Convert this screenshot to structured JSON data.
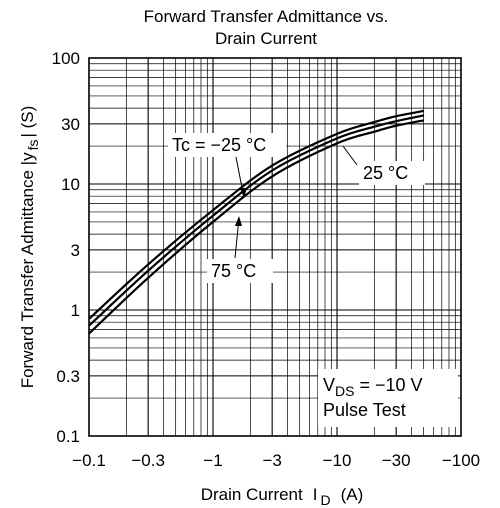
{
  "chart_data": {
    "type": "line",
    "title_line1": "Forward Transfer Admittance vs.",
    "title_line2": "Drain Current",
    "xlabel": "Drain Current",
    "xlabel_symbol": "I",
    "xlabel_sub": "D",
    "xlabel_unit": "(A)",
    "ylabel": "Forward Transfer Admittance  |y",
    "ylabel_sub": "fs",
    "ylabel_end": "| (S)",
    "x_scale": "log",
    "y_scale": "log",
    "x_direction": "negative current, magnitude increasing to the right",
    "xlim": [
      -0.1,
      -100
    ],
    "ylim": [
      0.1,
      100
    ],
    "grid": true,
    "x_ticks": [
      "-0.1",
      "-0.3",
      "-1",
      "-3",
      "-10",
      "-30",
      "-100"
    ],
    "y_ticks": [
      "100",
      "30",
      "10",
      "3",
      "1",
      "0.3",
      "0.1"
    ],
    "series": [
      {
        "name": "Tc = −25 °C",
        "x": [
          -0.1,
          -0.3,
          -1,
          -3,
          -10,
          -20,
          -30,
          -50
        ],
        "y": [
          0.85,
          2.3,
          6.2,
          14.0,
          25.0,
          31.0,
          34.5,
          38.0
        ]
      },
      {
        "name": "25 °C",
        "x": [
          -0.1,
          -0.3,
          -1,
          -3,
          -10,
          -20,
          -30,
          -50
        ],
        "y": [
          0.75,
          2.05,
          5.6,
          12.8,
          23.0,
          28.5,
          31.5,
          35.0
        ]
      },
      {
        "name": "75 °C",
        "x": [
          -0.1,
          -0.3,
          -1,
          -3,
          -10,
          -20,
          -30,
          -50
        ],
        "y": [
          0.65,
          1.8,
          5.0,
          11.5,
          21.0,
          26.0,
          29.0,
          32.0
        ]
      }
    ],
    "annotations": {
      "tc_label": "Tc = −25 °C",
      "label_25": "25 °C",
      "label_75": "75 °C",
      "vds_prefix": "V",
      "vds_sub": "DS",
      "vds_value": " = −10 V",
      "pulse": "Pulse Test"
    }
  }
}
